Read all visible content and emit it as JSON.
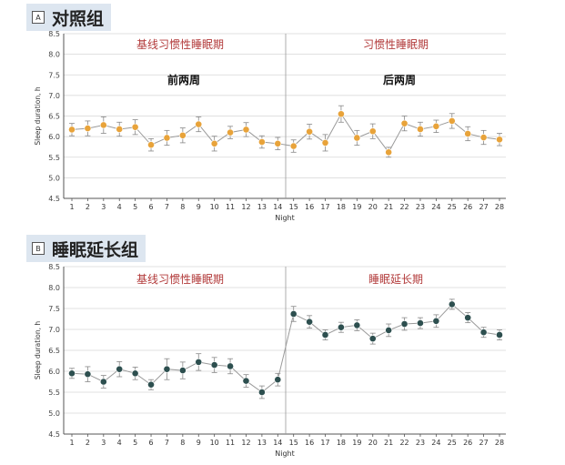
{
  "panels": [
    {
      "badge": "A",
      "title": "对照组"
    },
    {
      "badge": "B",
      "title": "睡眠延长组"
    }
  ],
  "chart_data": [
    {
      "type": "line",
      "title": "对照组",
      "xlabel": "Night",
      "ylabel": "Sleep duration, h",
      "ylim": [
        4.5,
        8.5
      ],
      "yticks": [
        "4.5",
        "5.0",
        "5.5",
        "6.0",
        "6.5",
        "7.0",
        "7.5",
        "8.0",
        "8.5"
      ],
      "categories": [
        "1",
        "2",
        "3",
        "4",
        "5",
        "6",
        "7",
        "8",
        "9",
        "10",
        "11",
        "12",
        "13",
        "14",
        "15",
        "16",
        "17",
        "18",
        "19",
        "20",
        "21",
        "22",
        "23",
        "24",
        "25",
        "26",
        "27",
        "28"
      ],
      "series": [
        {
          "color": "#e8a33a",
          "values": [
            6.17,
            6.2,
            6.28,
            6.18,
            6.23,
            5.8,
            5.97,
            6.03,
            6.3,
            5.83,
            6.1,
            6.17,
            5.87,
            5.83,
            5.77,
            6.12,
            5.85,
            6.55,
            5.97,
            6.13,
            5.62,
            6.32,
            6.18,
            6.25,
            6.38,
            6.07,
            5.98,
            5.93
          ],
          "errors": [
            0.15,
            0.18,
            0.2,
            0.17,
            0.18,
            0.15,
            0.18,
            0.18,
            0.18,
            0.18,
            0.15,
            0.17,
            0.15,
            0.15,
            0.15,
            0.18,
            0.2,
            0.2,
            0.18,
            0.18,
            0.12,
            0.18,
            0.17,
            0.15,
            0.18,
            0.17,
            0.17,
            0.15
          ]
        }
      ],
      "phases": [
        {
          "label": "基线习惯性睡眠期",
          "sublabel": "前两周"
        },
        {
          "label": "习惯性睡眠期",
          "sublabel": "后两周"
        }
      ]
    },
    {
      "type": "line",
      "title": "睡眠延长组",
      "xlabel": "Night",
      "ylabel": "Sleep duration, h",
      "ylim": [
        4.5,
        8.5
      ],
      "yticks": [
        "4.5",
        "5.0",
        "5.5",
        "6.0",
        "6.5",
        "7.0",
        "7.5",
        "8.0",
        "8.5"
      ],
      "categories": [
        "1",
        "2",
        "3",
        "4",
        "5",
        "6",
        "7",
        "8",
        "9",
        "10",
        "11",
        "12",
        "13",
        "14",
        "15",
        "16",
        "17",
        "18",
        "19",
        "20",
        "21",
        "22",
        "23",
        "24",
        "25",
        "26",
        "27",
        "28"
      ],
      "series": [
        {
          "color": "#2d4f4f",
          "values": [
            5.95,
            5.93,
            5.75,
            6.05,
            5.95,
            5.68,
            6.05,
            6.02,
            6.22,
            6.15,
            6.12,
            5.77,
            5.5,
            5.8,
            7.37,
            7.18,
            6.87,
            7.05,
            7.1,
            6.78,
            6.98,
            7.13,
            7.15,
            7.2,
            7.6,
            7.28,
            6.93,
            6.87
          ],
          "errors": [
            0.12,
            0.18,
            0.15,
            0.18,
            0.15,
            0.12,
            0.25,
            0.2,
            0.2,
            0.18,
            0.18,
            0.15,
            0.15,
            0.15,
            0.18,
            0.15,
            0.12,
            0.12,
            0.13,
            0.13,
            0.15,
            0.15,
            0.13,
            0.15,
            0.12,
            0.12,
            0.12,
            0.12
          ]
        }
      ],
      "phases": [
        {
          "label": "基线习惯性睡眠期",
          "sublabel": ""
        },
        {
          "label": "睡眠延长期",
          "sublabel": ""
        }
      ]
    }
  ]
}
